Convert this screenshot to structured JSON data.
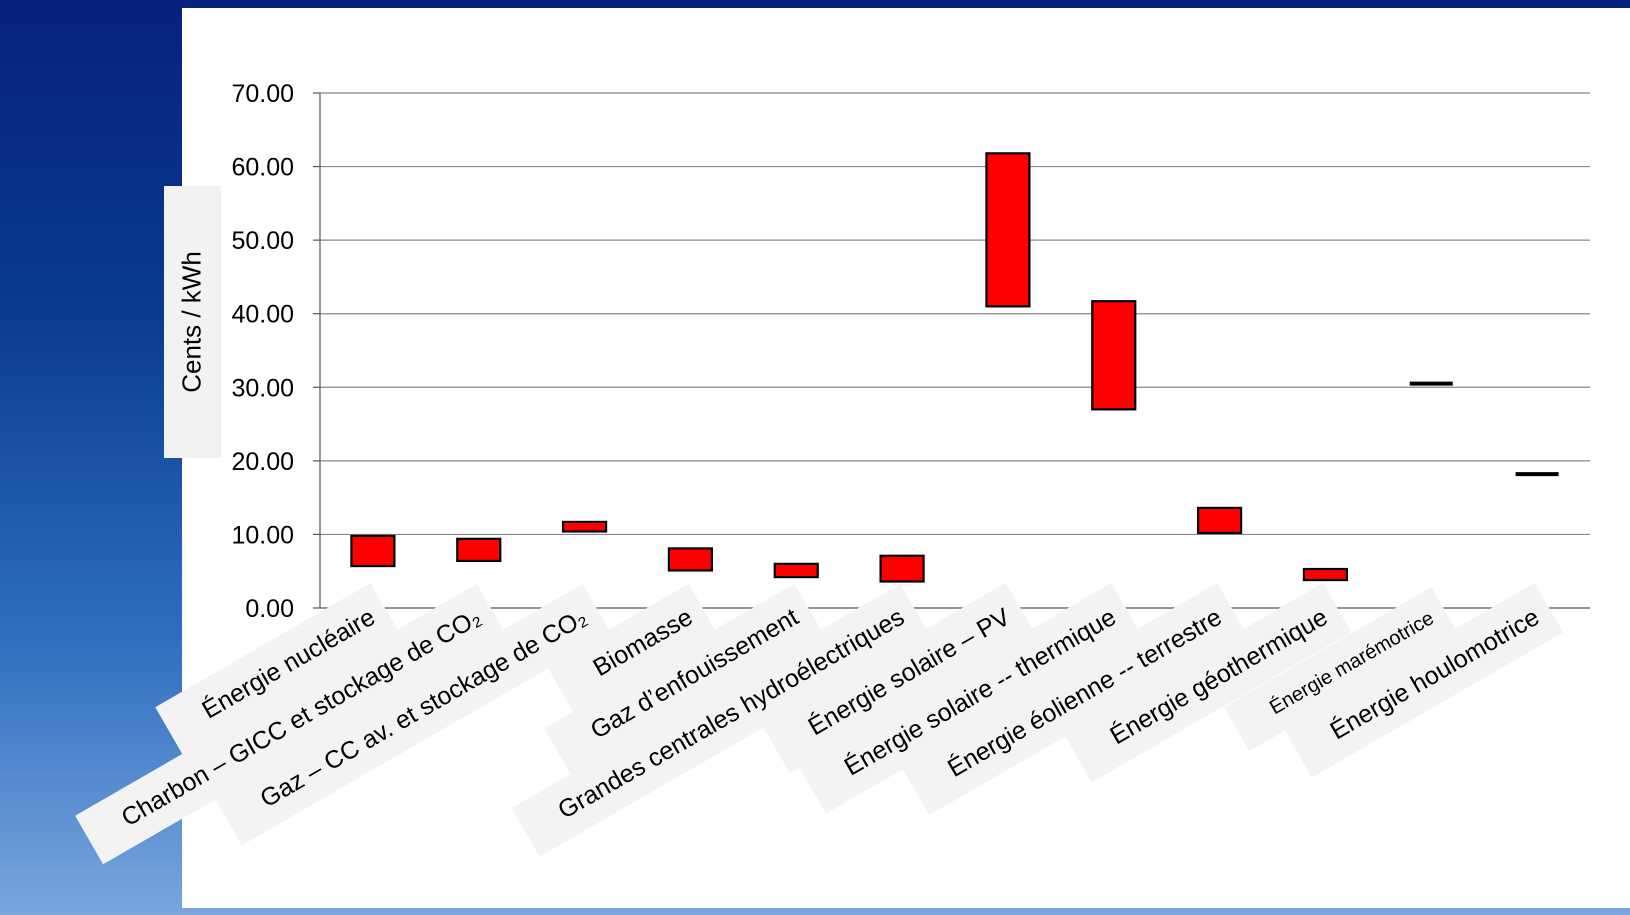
{
  "chart_data": {
    "type": "bar",
    "subtype": "floating-range",
    "title": "",
    "xlabel": "",
    "ylabel": "Cents / kWh",
    "ylim": [
      0,
      70
    ],
    "yticks": [
      "0.00",
      "10.00",
      "20.00",
      "30.00",
      "40.00",
      "50.00",
      "60.00",
      "70.00"
    ],
    "grid": true,
    "legend": "none",
    "bar_color": "#ff0000",
    "categories": [
      "Énergie nucléaire",
      "Charbon – GICC et stockage de CO₂",
      "Gaz – CC av. et stockage de CO₂",
      "Biomasse",
      "Gaz d’enfouissement",
      "Grandes centrales hydroélectriques",
      "Énergie solaire – PV",
      "Énergie solaire -- thermique",
      "Énergie éolienne -- terrestre",
      "Énergie géothermique",
      "Énergie marémotrice",
      "Énergie houlomotrice"
    ],
    "low": [
      5.7,
      6.4,
      10.4,
      5.1,
      4.2,
      3.6,
      41.0,
      27.0,
      10.2,
      3.8,
      30.5,
      18.2
    ],
    "high": [
      9.8,
      9.4,
      11.7,
      8.1,
      6.0,
      7.1,
      61.8,
      41.7,
      13.6,
      5.3,
      30.5,
      18.2
    ]
  }
}
